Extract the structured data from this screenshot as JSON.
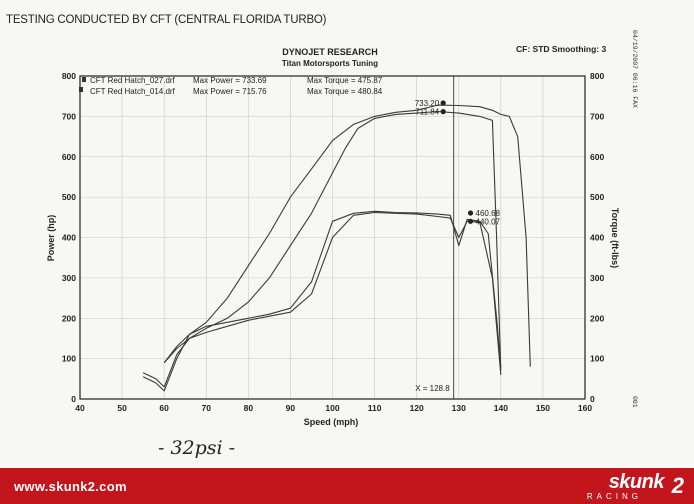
{
  "caption": "TESTING CONDUCTED BY CFT (CENTRAL FLORIDA TURBO)",
  "footer": {
    "url": "www.skunk2.com",
    "brand": "skunk",
    "brand_mark": "2",
    "brand_sub": "RACING"
  },
  "chart_data": {
    "type": "line",
    "title": "DYNOJET RESEARCH",
    "subtitle": "Titan Motorsports Tuning",
    "settings_label": "CF: STD  Smoothing: 3",
    "fax_stamp": "04/19/2007 06:16 FAX",
    "page_stamp": "001",
    "handwritten_note": "- 32psi -",
    "xlabel": "Speed (mph)",
    "ylabel_left": "Power (hp)",
    "ylabel_right": "Torque (ft-lbs)",
    "xlim": [
      40,
      160
    ],
    "ylim": [
      0,
      800
    ],
    "x_ticks": [
      40,
      50,
      60,
      70,
      80,
      90,
      100,
      110,
      120,
      130,
      140,
      150,
      160
    ],
    "y_ticks": [
      0,
      100,
      200,
      300,
      400,
      500,
      600,
      700,
      800
    ],
    "grid": true,
    "legend_position": "top-left",
    "legend": [
      {
        "file": "CFT Red Hatch_027.drf",
        "max_power_label": "Max Power = 733.69",
        "max_torque_label": "Max Torque = 475.87"
      },
      {
        "file": "CFT Red Hatch_014.drf",
        "max_power_label": "Max Power = 715.76",
        "max_torque_label": "Max Torque = 480.84"
      }
    ],
    "cursor": {
      "x": 128.8,
      "label": "X = 128.8"
    },
    "cursor_marker_labels": [
      {
        "text": "733.20",
        "x": 126.3,
        "y": 733.2
      },
      {
        "text": "711.84",
        "x": 126.3,
        "y": 711.8
      },
      {
        "text": "460.68",
        "x": 132.8,
        "y": 460.7
      },
      {
        "text": "440.07",
        "x": 132.8,
        "y": 440.1
      }
    ],
    "series": [
      {
        "kind": "power",
        "x": [
          60,
          63,
          66,
          70,
          75,
          80,
          85,
          90,
          95,
          100,
          105,
          110,
          115,
          120,
          125,
          130,
          135,
          138,
          140,
          142,
          144,
          146,
          147
        ],
        "y": [
          90,
          130,
          160,
          190,
          250,
          330,
          410,
          500,
          570,
          640,
          680,
          700,
          710,
          715,
          728,
          727,
          724,
          715,
          705,
          700,
          650,
          400,
          80
        ]
      },
      {
        "kind": "power",
        "x": [
          60,
          63,
          66,
          70,
          75,
          80,
          85,
          90,
          95,
          100,
          103,
          106,
          110,
          115,
          120,
          125,
          130,
          135,
          138,
          139,
          140
        ],
        "y": [
          90,
          125,
          150,
          175,
          200,
          240,
          300,
          380,
          460,
          560,
          620,
          670,
          695,
          705,
          708,
          712,
          708,
          700,
          690,
          400,
          70
        ]
      },
      {
        "kind": "torque",
        "x": [
          55,
          58,
          60,
          63,
          66,
          70,
          75,
          80,
          85,
          90,
          95,
          100,
          105,
          110,
          115,
          120,
          125,
          128,
          130,
          132,
          135,
          137,
          139,
          140
        ],
        "y": [
          55,
          40,
          20,
          100,
          160,
          180,
          190,
          200,
          210,
          225,
          290,
          440,
          460,
          465,
          462,
          461,
          458,
          455,
          380,
          445,
          440,
          410,
          200,
          80
        ]
      },
      {
        "kind": "torque",
        "x": [
          55,
          58,
          60,
          63,
          66,
          70,
          75,
          80,
          85,
          90,
          95,
          100,
          105,
          110,
          115,
          120,
          125,
          128,
          130,
          132,
          135,
          138,
          140
        ],
        "y": [
          65,
          50,
          30,
          110,
          150,
          165,
          180,
          195,
          205,
          215,
          260,
          400,
          455,
          462,
          460,
          458,
          452,
          448,
          400,
          440,
          438,
          300,
          60
        ]
      }
    ]
  }
}
